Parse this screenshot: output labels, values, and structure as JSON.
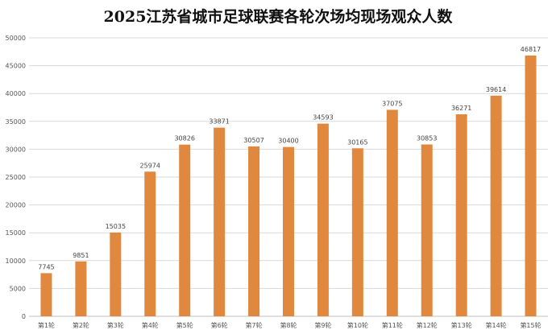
{
  "chart_data": {
    "type": "bar",
    "title": "2025江苏省城市足球联赛各轮次场均现场观众人数",
    "categories": [
      "第1轮",
      "第2轮",
      "第3轮",
      "第4轮",
      "第5轮",
      "第6轮",
      "第7轮",
      "第8轮",
      "第9轮",
      "第10轮",
      "第11轮",
      "第12轮",
      "第13轮",
      "第14轮",
      "第15轮"
    ],
    "values": [
      7745,
      9851,
      15035,
      25974,
      30826,
      33871,
      30507,
      30400,
      34593,
      30165,
      37075,
      30853,
      36271,
      39614,
      46817
    ],
    "ylim": [
      0,
      50000
    ],
    "yticks": [
      0,
      5000,
      10000,
      15000,
      20000,
      25000,
      30000,
      35000,
      40000,
      45000,
      50000
    ],
    "grid": true,
    "color": "#e0883e"
  }
}
